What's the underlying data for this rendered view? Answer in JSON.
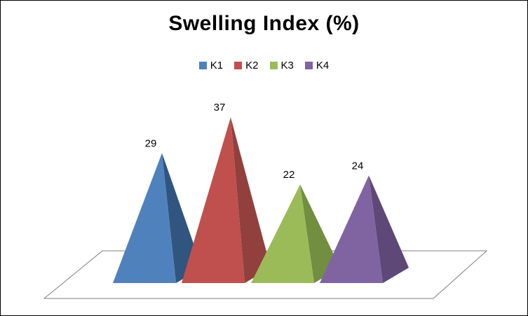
{
  "title": "Swelling Index (%)",
  "chart_data": {
    "type": "pyramid-3d-bar",
    "title": "Swelling Index (%)",
    "categories": [
      "K1",
      "K2",
      "K3",
      "K4"
    ],
    "values": [
      29,
      37,
      22,
      24
    ],
    "data_labels": [
      "29",
      "37",
      "22",
      "24"
    ],
    "series_colors": [
      "#4F81BD",
      "#C0504D",
      "#9BBB59",
      "#8064A2"
    ],
    "series_dark_colors": [
      "#30557F",
      "#92403D",
      "#718E41",
      "#5D4878"
    ],
    "legend_position": "top",
    "legend_entries": [
      "K1",
      "K2",
      "K3",
      "K4"
    ],
    "xlabel": "",
    "ylabel": "",
    "grid": false,
    "floor_outline_color": "#7F7F7F",
    "background_color": "#FFFFFF"
  }
}
